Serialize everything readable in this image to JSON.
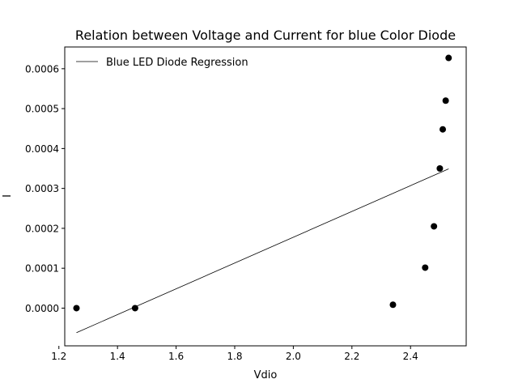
{
  "chart_data": {
    "type": "scatter",
    "title": "Relation between Voltage and Current for blue Color Diode",
    "xlabel": "Vdio",
    "ylabel": "I",
    "xlim": [
      1.22,
      2.59
    ],
    "ylim": [
      -9.45e-05,
      0.0006545
    ],
    "grid": false,
    "legend_position": "top-left",
    "x_ticks": [
      1.2,
      1.4,
      1.6,
      1.8,
      2.0,
      2.2,
      2.4
    ],
    "x_tick_labels": [
      "1.2",
      "1.4",
      "1.6",
      "1.8",
      "2.0",
      "2.2",
      "2.4"
    ],
    "y_ticks": [
      0.0,
      0.0001,
      0.0002,
      0.0003,
      0.0004,
      0.0005,
      0.0006
    ],
    "y_tick_labels": [
      "0.0000",
      "0.0001",
      "0.0002",
      "0.0003",
      "0.0004",
      "0.0005",
      "0.0006"
    ],
    "series": [
      {
        "kind": "points",
        "color": "#000000",
        "x": [
          1.26,
          1.46,
          2.34,
          2.45,
          2.48,
          2.5,
          2.51,
          2.52,
          2.53
        ],
        "y": [
          0.0,
          0.0,
          8.5e-06,
          0.0001015,
          0.000205,
          0.00035,
          0.000448,
          0.00052,
          0.000627
        ]
      },
      {
        "kind": "line",
        "name": "Blue LED Diode Regression",
        "color": "#000000",
        "x": [
          1.26,
          2.53
        ],
        "y": [
          -6.15e-05,
          0.000349
        ]
      }
    ]
  }
}
